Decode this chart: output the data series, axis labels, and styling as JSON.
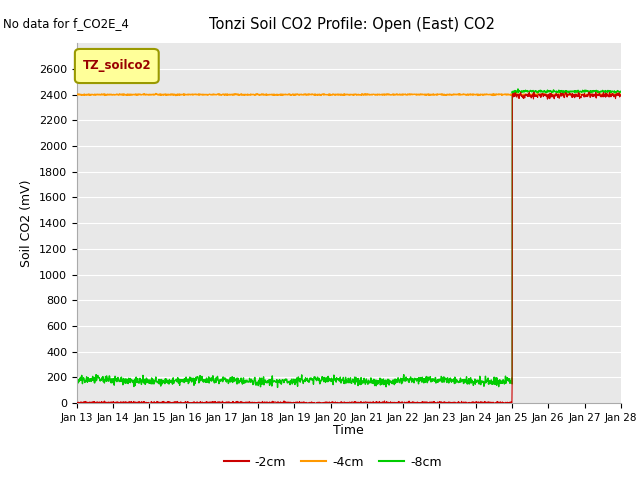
{
  "title": "Tonzi Soil CO2 Profile: Open (East) CO2",
  "no_data_text": "No data for f_CO2E_4",
  "ylabel": "Soil CO2 (mV)",
  "xlabel": "Time",
  "legend_label": "TZ_soilco2",
  "ylim": [
    0,
    2800
  ],
  "yticks": [
    0,
    200,
    400,
    600,
    800,
    1000,
    1200,
    1400,
    1600,
    1800,
    2000,
    2200,
    2400,
    2600
  ],
  "x_start_day": 13,
  "x_end_day": 28,
  "x_tick_days": [
    13,
    14,
    15,
    16,
    17,
    18,
    19,
    20,
    21,
    22,
    23,
    24,
    25,
    26,
    27,
    28
  ],
  "color_2cm": "#cc0000",
  "color_4cm": "#ff9900",
  "color_8cm": "#00cc00",
  "line_label_2cm": "-2cm",
  "line_label_4cm": "-4cm",
  "line_label_8cm": "-8cm",
  "bg_color": "#e8e8e8",
  "fig_bg_color": "#ffffff",
  "legend_box_color": "#ffff99",
  "legend_box_edge": "#999900"
}
